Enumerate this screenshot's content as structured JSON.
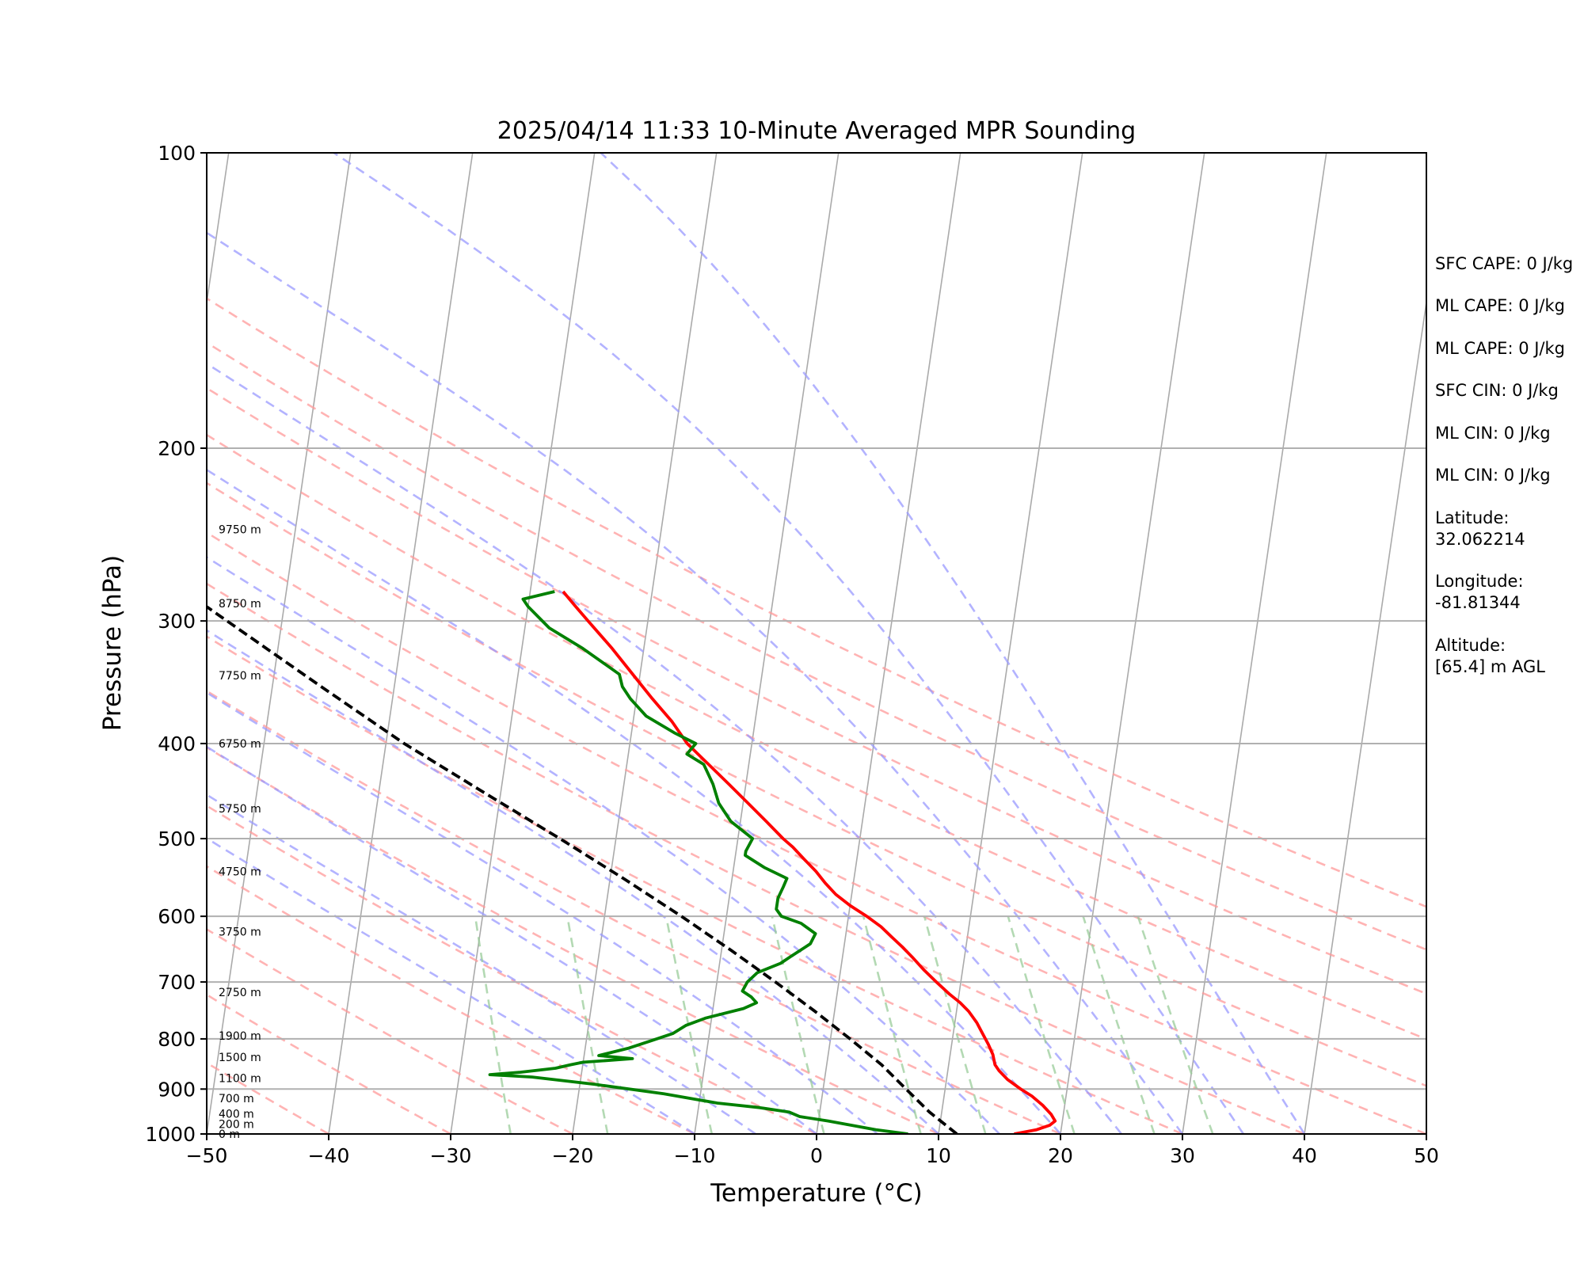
{
  "chart_data": {
    "type": "skew-t log-p",
    "title": "2025/04/14 11:33 10-Minute Averaged MPR Sounding",
    "xlabel": "Temperature (°C)",
    "ylabel": "Pressure (hPa)",
    "xlim": [
      -50,
      50
    ],
    "ylim": [
      1000,
      100
    ],
    "y_scale": "log",
    "x_ticks": [
      "−50",
      "−40",
      "−30",
      "−20",
      "−10",
      "0",
      "10",
      "20",
      "30",
      "40",
      "50"
    ],
    "y_ticks": [
      "100",
      "200",
      "300",
      "400",
      "500",
      "600",
      "700",
      "800",
      "900",
      "1000"
    ],
    "grid": "horizontal isobars",
    "series": [
      {
        "role": "temperature",
        "color": "#ff0000",
        "points": [
          [
            1000,
            16.2
          ],
          [
            990,
            18.0
          ],
          [
            980,
            19.0
          ],
          [
            970,
            19.4
          ],
          [
            955,
            19.0
          ],
          [
            935,
            18.2
          ],
          [
            915,
            17.2
          ],
          [
            900,
            16.2
          ],
          [
            880,
            15.0
          ],
          [
            862,
            14.2
          ],
          [
            850,
            13.8
          ],
          [
            830,
            13.5
          ],
          [
            810,
            13.0
          ],
          [
            790,
            12.4
          ],
          [
            770,
            11.8
          ],
          [
            750,
            11.0
          ],
          [
            735,
            10.2
          ],
          [
            720,
            9.2
          ],
          [
            700,
            8.0
          ],
          [
            680,
            6.8
          ],
          [
            660,
            5.7
          ],
          [
            645,
            4.8
          ],
          [
            630,
            3.8
          ],
          [
            615,
            2.8
          ],
          [
            600,
            1.5
          ],
          [
            585,
            0.0
          ],
          [
            570,
            -1.3
          ],
          [
            555,
            -2.3
          ],
          [
            540,
            -3.2
          ],
          [
            525,
            -4.3
          ],
          [
            510,
            -5.4
          ],
          [
            500,
            -6.3
          ],
          [
            480,
            -7.9
          ],
          [
            460,
            -9.6
          ],
          [
            440,
            -11.4
          ],
          [
            420,
            -13.3
          ],
          [
            400,
            -15.3
          ],
          [
            380,
            -16.8
          ],
          [
            360,
            -18.7
          ],
          [
            340,
            -20.6
          ],
          [
            320,
            -22.6
          ],
          [
            300,
            -24.9
          ],
          [
            290,
            -26.1
          ],
          [
            280,
            -27.3
          ]
        ]
      },
      {
        "role": "dewpoint",
        "color": "#008000",
        "points": [
          [
            1000,
            7.5
          ],
          [
            990,
            4.8
          ],
          [
            980,
            2.8
          ],
          [
            970,
            0.8
          ],
          [
            960,
            -1.6
          ],
          [
            950,
            -2.5
          ],
          [
            940,
            -5.0
          ],
          [
            930,
            -8.5
          ],
          [
            910,
            -13.0
          ],
          [
            890,
            -18.8
          ],
          [
            875,
            -24.0
          ],
          [
            870,
            -27.5
          ],
          [
            865,
            -25.0
          ],
          [
            857,
            -22.2
          ],
          [
            850,
            -21.0
          ],
          [
            845,
            -20.0
          ],
          [
            838,
            -16.0
          ],
          [
            832,
            -18.8
          ],
          [
            818,
            -16.5
          ],
          [
            802,
            -14.5
          ],
          [
            790,
            -13.0
          ],
          [
            775,
            -12.0
          ],
          [
            762,
            -10.5
          ],
          [
            745,
            -7.5
          ],
          [
            735,
            -6.5
          ],
          [
            725,
            -7.0
          ],
          [
            715,
            -7.8
          ],
          [
            700,
            -7.5
          ],
          [
            685,
            -6.8
          ],
          [
            670,
            -5.0
          ],
          [
            660,
            -4.3
          ],
          [
            640,
            -2.8
          ],
          [
            625,
            -2.5
          ],
          [
            610,
            -3.8
          ],
          [
            600,
            -5.5
          ],
          [
            590,
            -6.0
          ],
          [
            575,
            -6.0
          ],
          [
            560,
            -5.7
          ],
          [
            549,
            -5.5
          ],
          [
            535,
            -7.5
          ],
          [
            520,
            -9.2
          ],
          [
            515,
            -9.2
          ],
          [
            500,
            -8.8
          ],
          [
            480,
            -10.8
          ],
          [
            460,
            -12.0
          ],
          [
            440,
            -12.7
          ],
          [
            420,
            -13.7
          ],
          [
            410,
            -15.2
          ],
          [
            400,
            -14.6
          ],
          [
            390,
            -16.5
          ],
          [
            375,
            -19.0
          ],
          [
            360,
            -20.5
          ],
          [
            350,
            -21.3
          ],
          [
            340,
            -21.7
          ],
          [
            320,
            -25.0
          ],
          [
            305,
            -28.0
          ],
          [
            290,
            -30.0
          ],
          [
            285,
            -30.5
          ],
          [
            280,
            -28.0
          ]
        ]
      },
      {
        "role": "parcel",
        "color": "#000000",
        "points": [
          [
            1000,
            11.5
          ],
          [
            950,
            9.0
          ],
          [
            900,
            6.8
          ],
          [
            850,
            4.5
          ],
          [
            800,
            1.6
          ],
          [
            750,
            -1.6
          ],
          [
            700,
            -5.2
          ],
          [
            650,
            -9.2
          ],
          [
            600,
            -13.7
          ],
          [
            550,
            -18.8
          ],
          [
            500,
            -24.6
          ],
          [
            450,
            -31.2
          ],
          [
            400,
            -38.5
          ],
          [
            350,
            -46.0
          ],
          [
            300,
            -54.5
          ],
          [
            280,
            -58.3
          ]
        ]
      }
    ],
    "height_labels": [
      "0 m",
      "200 m",
      "400 m",
      "700 m",
      "1100 m",
      "1500 m",
      "1900 m",
      "2750 m",
      "3750 m",
      "4750 m",
      "5750 m",
      "6750 m",
      "7750 m",
      "8750 m",
      "9750 m"
    ],
    "height_label_pressures": [
      1000,
      977,
      954,
      920,
      877,
      835,
      794,
      717,
      622,
      540,
      466,
      400,
      341,
      288,
      242
    ],
    "reference_lines": {
      "isotherms_skewed": {
        "color": "#aaaaaa"
      },
      "dry_adiabats": {
        "color": "#ff9999",
        "start_temps": [
          -40,
          -30,
          -20,
          -10,
          0,
          10,
          20,
          30,
          40,
          50,
          60,
          70,
          80,
          90,
          100
        ]
      },
      "moist_adiabats": {
        "color": "#9999ff",
        "start_temps": [
          -10,
          -5,
          0,
          5,
          10,
          15,
          20,
          25,
          30,
          35,
          40
        ]
      },
      "mixing_ratio_lines": {
        "color": "#99cc99",
        "values_gkg": [
          0.5,
          1,
          2,
          4,
          7,
          10,
          16,
          24,
          32
        ]
      }
    }
  },
  "info_panel": {
    "sfc_cape": "SFC CAPE: 0 J/kg",
    "ml_cape_1": "ML CAPE: 0 J/kg",
    "ml_cape_2": "ML CAPE: 0 J/kg",
    "sfc_cin": "SFC CIN: 0 J/kg",
    "ml_cin_1": "ML CIN: 0 J/kg",
    "ml_cin_2": "ML CIN: 0 J/kg",
    "latitude_label": "Latitude:",
    "latitude_value": "32.062214",
    "longitude_label": "Longitude:",
    "longitude_value": "-81.81344",
    "altitude_label": "Altitude:",
    "altitude_value": "[65.4] m AGL"
  }
}
